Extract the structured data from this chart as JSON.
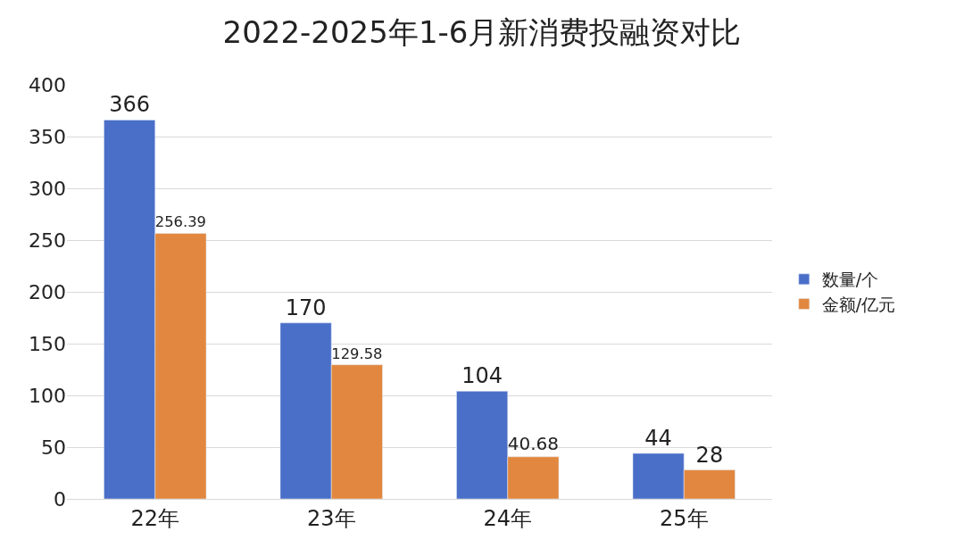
{
  "chart_data": {
    "type": "bar",
    "title": "2022-2025年1-6月新消费投融资对比",
    "categories": [
      "22年",
      "23年",
      "24年",
      "25年"
    ],
    "series": [
      {
        "name": "数量/个",
        "color": "#4a6fc8",
        "values": [
          366,
          170,
          104,
          44
        ]
      },
      {
        "name": "金额/亿元",
        "color": "#e2873f",
        "values": [
          256.39,
          129.58,
          40.68,
          28
        ]
      }
    ],
    "ylim": [
      0,
      400
    ],
    "yticks": [
      0,
      50,
      100,
      150,
      200,
      250,
      300,
      350,
      400
    ],
    "grid": "y",
    "legend": "right",
    "data_labels": true
  }
}
